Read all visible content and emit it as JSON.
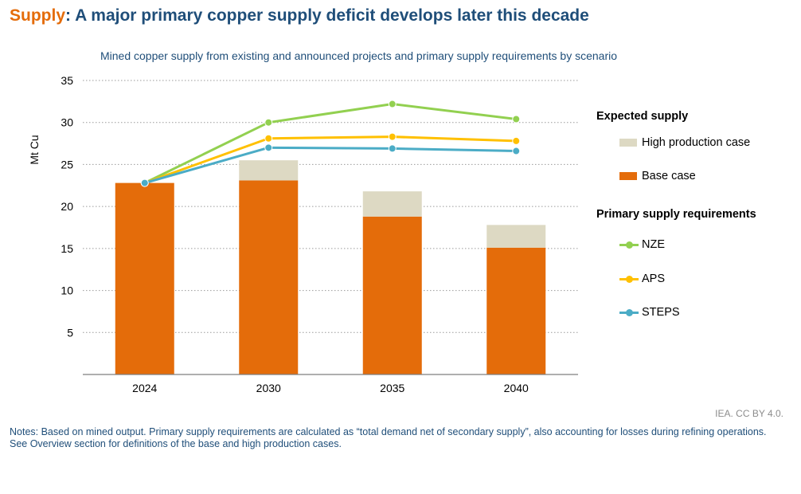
{
  "header": {
    "title_keyword": "Supply",
    "title_rest": ": A major primary copper supply deficit develops later this decade"
  },
  "chart_data": {
    "type": "bar",
    "title": "Mined copper supply from existing and announced projects and primary supply requirements by scenario",
    "ylabel": "Mt Cu",
    "ylim": [
      0,
      35
    ],
    "yticks": [
      5,
      10,
      15,
      20,
      25,
      30,
      35
    ],
    "grid": true,
    "categories": [
      "2024",
      "2030",
      "2035",
      "2040"
    ],
    "stacked_series": [
      {
        "name": "Base case",
        "color": "#e46c0a",
        "values": [
          22.8,
          23.1,
          18.8,
          15.1
        ]
      },
      {
        "name": "High production case",
        "color": "#ddd9c3",
        "values": [
          0,
          2.4,
          3.0,
          2.7
        ]
      }
    ],
    "line_series": [
      {
        "name": "NZE",
        "color": "#92d050",
        "values": [
          22.8,
          30.0,
          32.2,
          30.4
        ]
      },
      {
        "name": "APS",
        "color": "#ffc000",
        "values": [
          22.8,
          28.1,
          28.3,
          27.8
        ]
      },
      {
        "name": "STEPS",
        "color": "#4bacc6",
        "values": [
          22.8,
          27.0,
          26.9,
          26.6
        ]
      }
    ]
  },
  "legend": {
    "expected_supply_heading": "Expected supply",
    "high_production_label": "High production case",
    "base_case_label": "Base case",
    "requirements_heading": "Primary supply requirements",
    "nze_label": "NZE",
    "aps_label": "APS",
    "steps_label": "STEPS"
  },
  "footer": {
    "credit": "IEA. CC BY 4.0.",
    "notes": "Notes: Based on mined output. Primary supply requirements are calculated as “total demand net of secondary supply”, also accounting for losses during refining operations. See Overview section for definitions of the base and high production cases."
  }
}
